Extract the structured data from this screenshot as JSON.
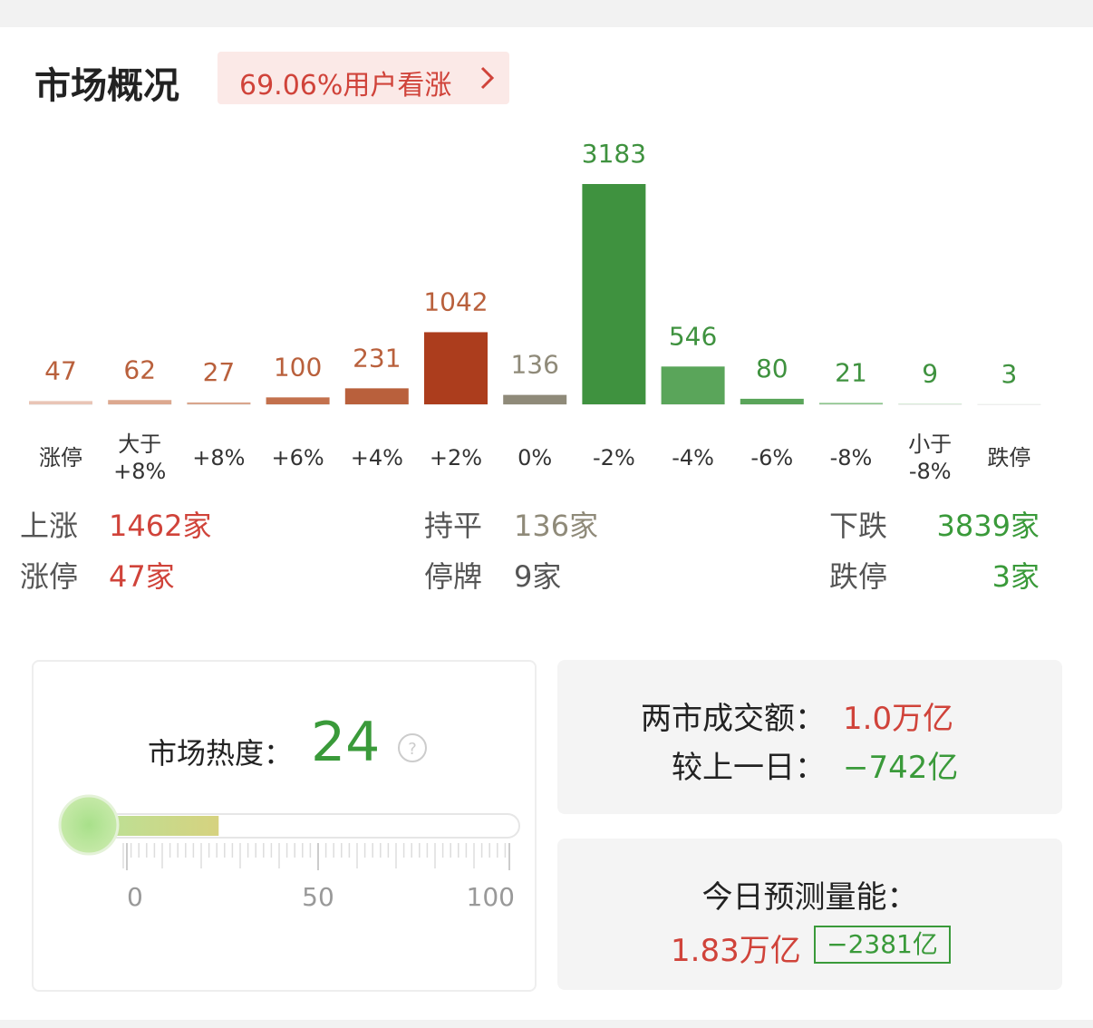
{
  "header": {
    "title": "市场概况",
    "badge": "69.06%用户看涨"
  },
  "chart_data": {
    "type": "bar",
    "categories": [
      "涨停",
      "大于\n+8%",
      "+8%",
      "+6%",
      "+4%",
      "+2%",
      "0%",
      "-2%",
      "-4%",
      "-6%",
      "-8%",
      "小于\n-8%",
      "跌停"
    ],
    "values": [
      47,
      62,
      27,
      100,
      231,
      1042,
      136,
      3183,
      546,
      80,
      21,
      9,
      3
    ],
    "colors": [
      "#e9c5b6",
      "#dca88f",
      "#d9a58c",
      "#c3714d",
      "#b9603c",
      "#ac3d1d",
      "#8f8a79",
      "#3f923f",
      "#5aa55a",
      "#5aa55a",
      "#8cc48c",
      "#c7e2c7",
      "#d6ead6"
    ],
    "label_colors": [
      "#b9603c",
      "#b9603c",
      "#b9603c",
      "#b9603c",
      "#b9603c",
      "#b9603c",
      "#8f8a79",
      "#3f923f",
      "#3f923f",
      "#3f923f",
      "#3f923f",
      "#3f923f",
      "#3f923f"
    ]
  },
  "summary": {
    "rise": {
      "label": "上涨",
      "value": "1462家"
    },
    "flat": {
      "label": "持平",
      "value": "136家"
    },
    "fall": {
      "label": "下跌",
      "value": "3839家"
    },
    "limit_up": {
      "label": "涨停",
      "value": "47家"
    },
    "suspended": {
      "label": "停牌",
      "value": "9家"
    },
    "limit_down": {
      "label": "跌停",
      "value": "3家"
    }
  },
  "heat": {
    "label": "市场热度：",
    "value": 24,
    "min": 0,
    "max": 100,
    "ticks": [
      0,
      50,
      100
    ]
  },
  "turnover": {
    "label": "两市成交额：",
    "value": "1.0万亿",
    "change_label": "较上一日：",
    "change": "−742亿"
  },
  "forecast": {
    "label": "今日预测量能：",
    "value": "1.83万亿",
    "change": "−2381亿"
  }
}
